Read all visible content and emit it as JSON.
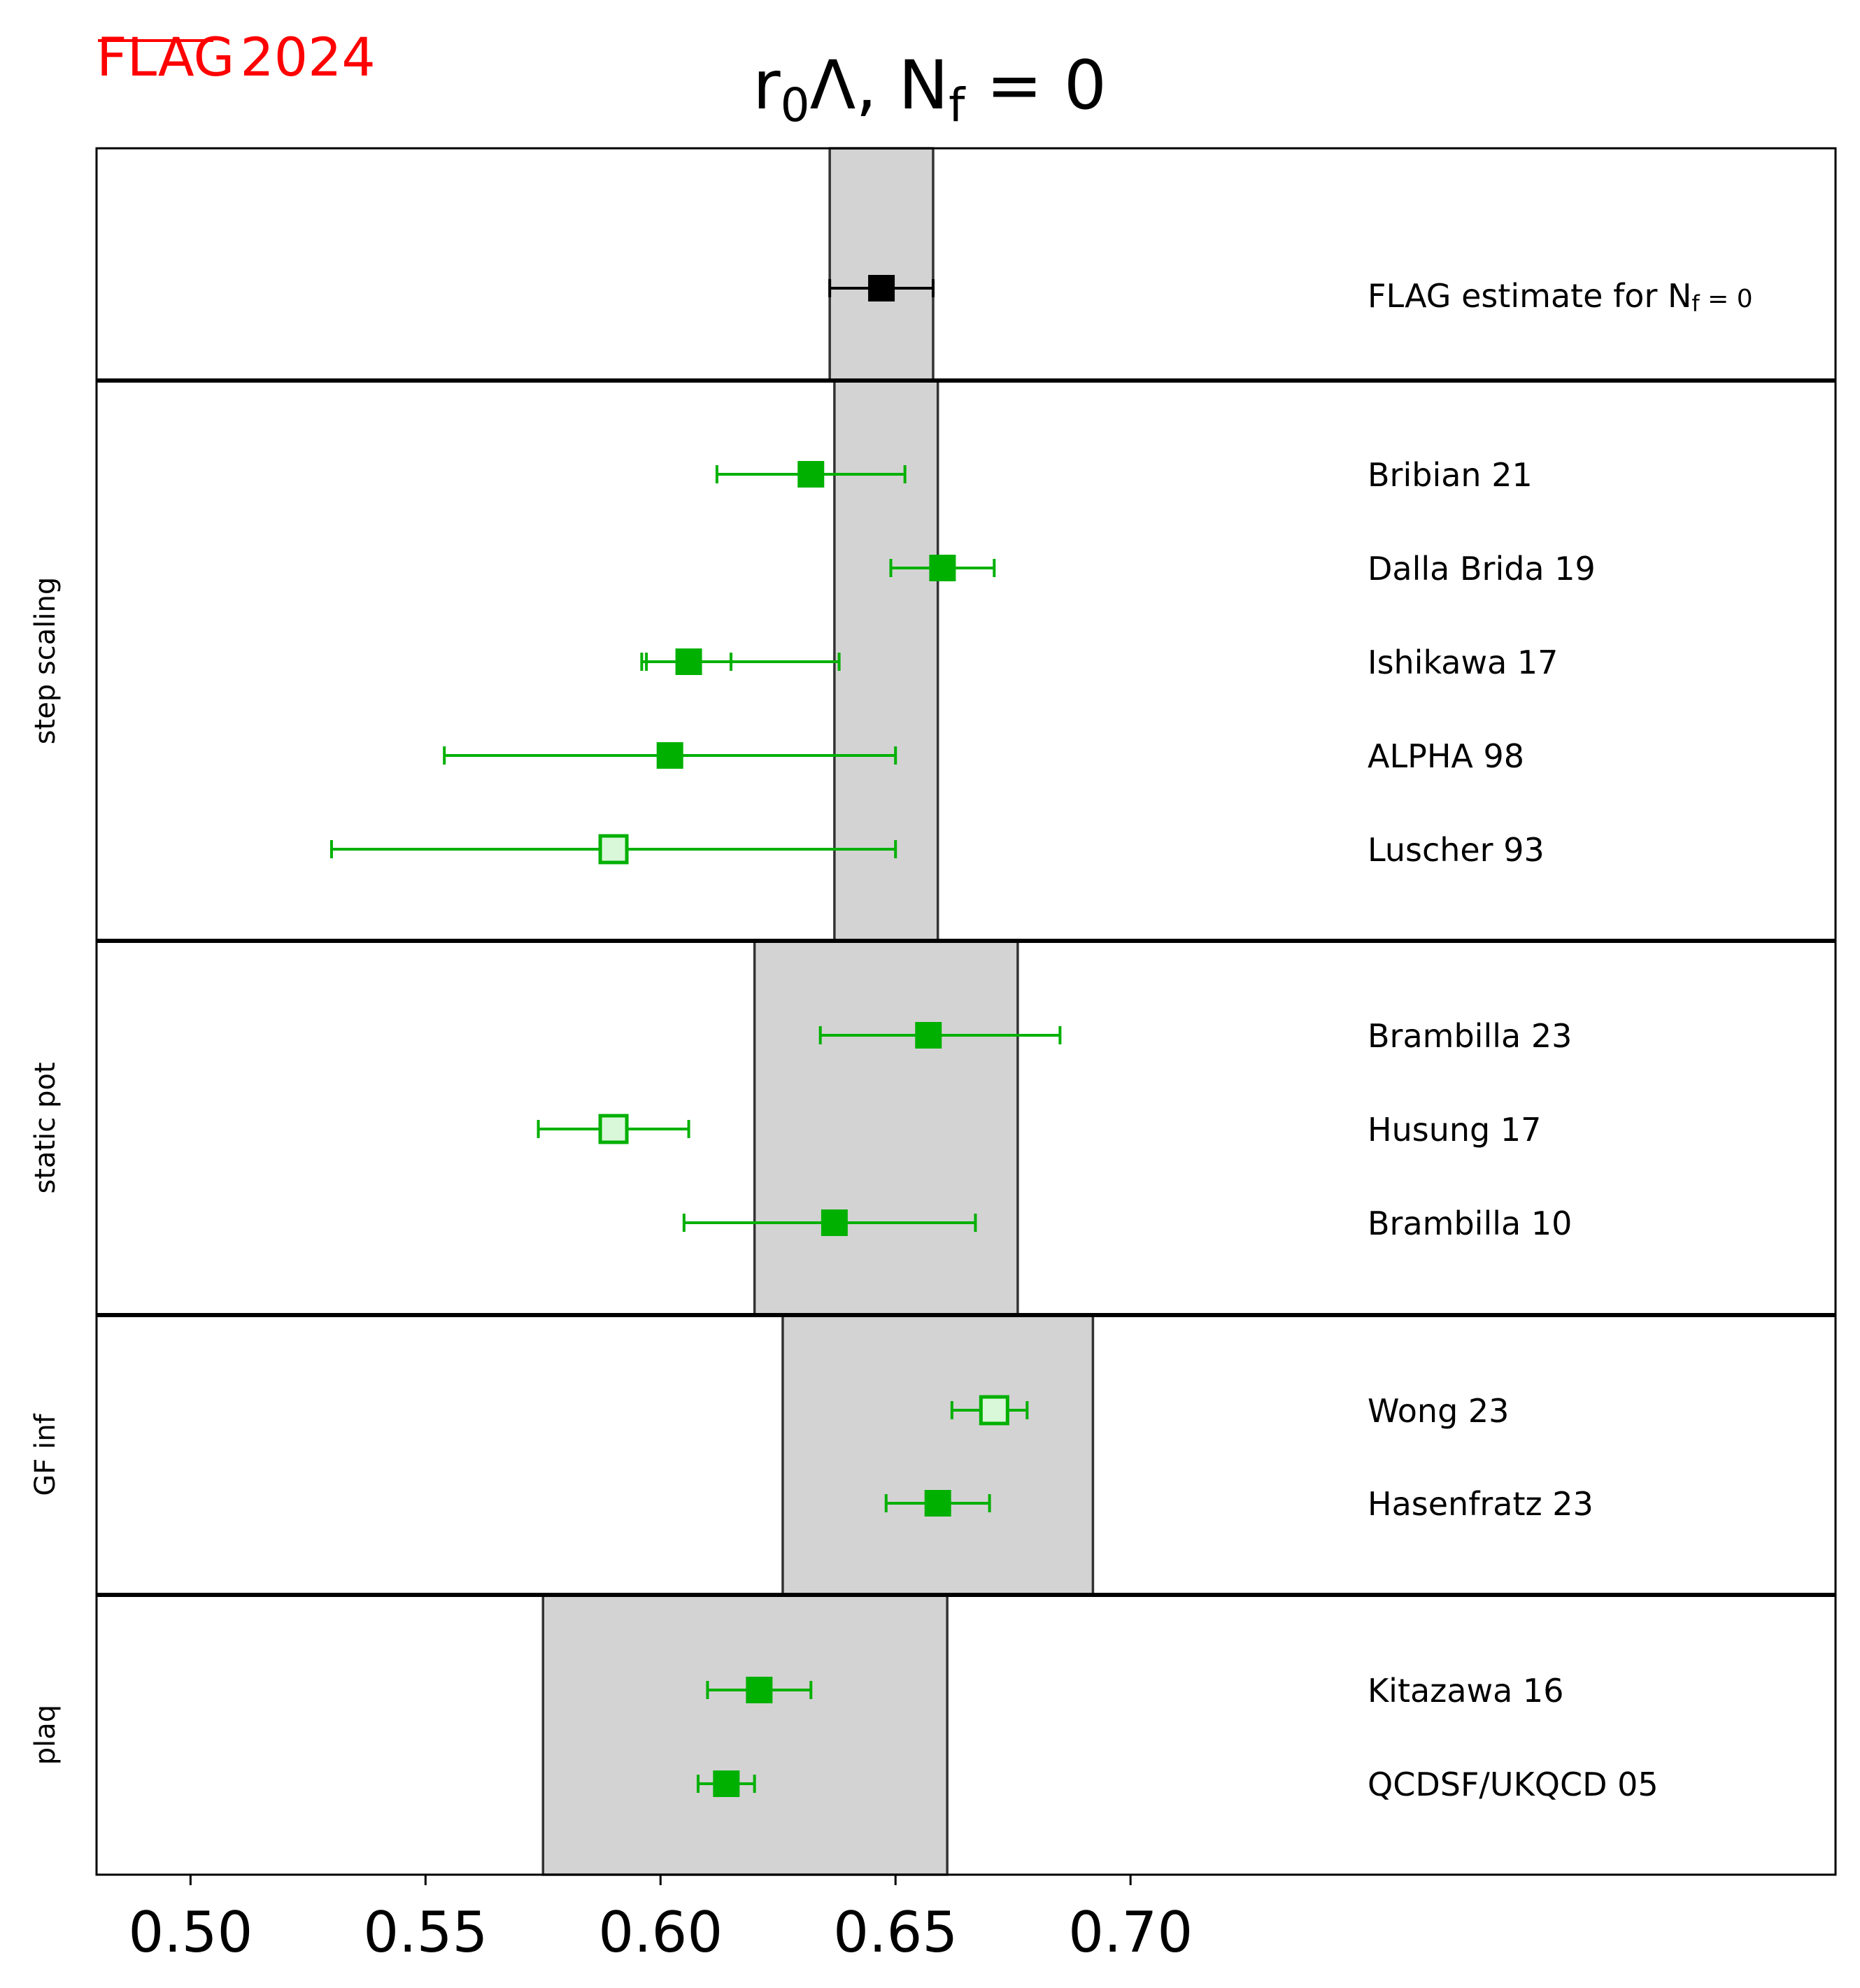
{
  "logo": {
    "flag": "FLAG",
    "year": "2024",
    "color": "#ff0000"
  },
  "chart_data": {
    "type": "forest",
    "title": {
      "base": "r",
      "sub": "0",
      "mid": "Λ, N",
      "sub2": "f",
      "end": " = 0"
    },
    "xlim": [
      0.48,
      0.85
    ],
    "xticks": [
      "0.50",
      "0.55",
      "0.60",
      "0.65",
      "0.70"
    ],
    "colors": {
      "data": "#00b000",
      "open_fill": "#d9f7d9",
      "estimate": "#000000",
      "band": "#d3d3d3"
    },
    "estimate": {
      "label_main": "FLAG estimate for N",
      "label_sub": "f",
      "label_end": " = 0",
      "value": 0.647,
      "low": 0.636,
      "high": 0.658
    },
    "groups": [
      {
        "name": "step scaling",
        "band": [
          0.637,
          0.659
        ],
        "entries": [
          {
            "label": "Bribian 21",
            "value": 0.632,
            "low": 0.612,
            "high": 0.652,
            "filled": true
          },
          {
            "label": "Dalla Brida 19",
            "value": 0.66,
            "low": 0.649,
            "high": 0.671,
            "filled": true
          },
          {
            "label": "Ishikawa 17",
            "value": 0.606,
            "low": 0.596,
            "high": 0.638,
            "inner_low": 0.597,
            "inner_high": 0.615,
            "filled": true
          },
          {
            "label": "ALPHA 98",
            "value": 0.602,
            "low": 0.554,
            "high": 0.65,
            "filled": true
          },
          {
            "label": "Luscher 93",
            "value": 0.59,
            "low": 0.53,
            "high": 0.65,
            "filled": false
          }
        ]
      },
      {
        "name": "static pot",
        "band": [
          0.62,
          0.676
        ],
        "entries": [
          {
            "label": "Brambilla 23",
            "value": 0.657,
            "low": 0.634,
            "high": 0.685,
            "filled": true
          },
          {
            "label": "Husung 17",
            "value": 0.59,
            "low": 0.574,
            "high": 0.606,
            "filled": false
          },
          {
            "label": "Brambilla 10",
            "value": 0.637,
            "low": 0.605,
            "high": 0.667,
            "filled": true
          }
        ]
      },
      {
        "name": "GF inf",
        "band": [
          0.626,
          0.692
        ],
        "entries": [
          {
            "label": "Wong 23",
            "value": 0.671,
            "low": 0.662,
            "high": 0.678,
            "filled": false
          },
          {
            "label": "Hasenfratz 23",
            "value": 0.659,
            "low": 0.648,
            "high": 0.67,
            "filled": true
          }
        ]
      },
      {
        "name": "plaq",
        "band": [
          0.575,
          0.661
        ],
        "entries": [
          {
            "label": "Kitazawa 16",
            "value": 0.621,
            "low": 0.61,
            "high": 0.632,
            "filled": true
          },
          {
            "label": "QCDSF/UKQCD 05",
            "value": 0.614,
            "low": 0.608,
            "high": 0.62,
            "filled": true
          }
        ]
      }
    ]
  }
}
